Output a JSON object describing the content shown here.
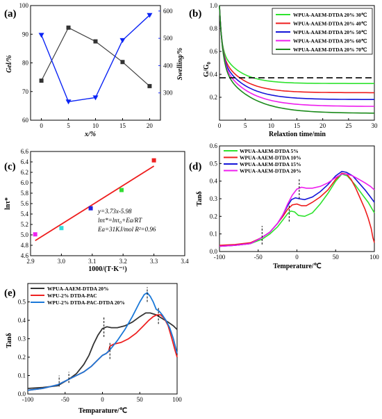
{
  "chart_data": [
    {
      "panel_label": "(a)",
      "type": "line",
      "xlabel": "x/%",
      "ylabel": "Gel/%",
      "y2label": "Swelling/%",
      "xlim": [
        -2,
        22
      ],
      "ylim": [
        60,
        100
      ],
      "y2lim": [
        200,
        620
      ],
      "x_ticks": [
        "0",
        "5",
        "10",
        "15",
        "20"
      ],
      "y_ticks": [
        "60",
        "70",
        "80",
        "90",
        "100"
      ],
      "y2_ticks": [
        "300",
        "400",
        "500",
        "600"
      ],
      "grid": false,
      "series": [
        {
          "name": "",
          "axis": "left",
          "color": "#404040",
          "marker": "square",
          "x": [
            0,
            5,
            10,
            15,
            20
          ],
          "y": [
            73.8,
            92.3,
            87.5,
            80.3,
            71.9
          ]
        },
        {
          "name": "",
          "axis": "right",
          "color": "#0b24f5",
          "marker": "triangle-down",
          "x": [
            0,
            5,
            10,
            15,
            20
          ],
          "y": [
            512,
            268,
            283,
            493,
            585
          ]
        }
      ]
    },
    {
      "panel_label": "(b)",
      "type": "line",
      "xlabel": "Relaxtion time/min",
      "ylabel": "G/G",
      "ylabel_sub": "0",
      "xlim": [
        0,
        30
      ],
      "ylim": [
        0,
        1.0
      ],
      "x_ticks": [
        "0",
        "5",
        "10",
        "15",
        "20",
        "25",
        "30"
      ],
      "y_ticks": [
        "0.2",
        "0.4",
        "0.6",
        "0.8",
        "1.0"
      ],
      "reference_line": {
        "y": 0.37,
        "style": "dashed"
      },
      "legend_position": "top-right",
      "grid": false,
      "series": [
        {
          "name": "WPUA-AAEM-DTDA 20% 30℃",
          "color": "#2ee32e",
          "tau": 0.4,
          "plateau": 0.32
        },
        {
          "name": "WPUA-AAEM-DTDA 20% 40℃",
          "color": "#ee1c1c",
          "tau": 0.45,
          "plateau": 0.24
        },
        {
          "name": "WPUA-AAEM-DTDA 20% 50℃",
          "color": "#1414d8",
          "tau": 0.5,
          "plateau": 0.18
        },
        {
          "name": "WPUA-AAEM-DTDA 20% 60℃",
          "color": "#ee1cee",
          "tau": 0.55,
          "plateau": 0.12
        },
        {
          "name": "WPUA-AAEM-DTDA 20% 70℃",
          "color": "#1a8a1a",
          "tau": 0.6,
          "plateau": 0.06
        }
      ]
    },
    {
      "panel_label": "(c)",
      "type": "scatter",
      "xlabel": "1000/(T·K⁻¹)",
      "ylabel": "lnτ*",
      "xlim": [
        2.9,
        3.4
      ],
      "ylim": [
        4.6,
        6.6
      ],
      "x_ticks": [
        "2.9",
        "3.0",
        "3.1",
        "3.2",
        "3.3",
        "3.4"
      ],
      "y_ticks": [
        "4.6",
        "4.8",
        "5.0",
        "5.2",
        "5.4",
        "5.6",
        "5.8",
        "6.0",
        "6.2",
        "6.4",
        "6.6"
      ],
      "points": [
        {
          "x": 2.915,
          "y": 5.01,
          "color": "#ee22ee"
        },
        {
          "x": 3.0,
          "y": 5.13,
          "color": "#33dddd"
        },
        {
          "x": 3.095,
          "y": 5.51,
          "color": "#2222dd"
        },
        {
          "x": 3.195,
          "y": 5.86,
          "color": "#33dd33"
        },
        {
          "x": 3.3,
          "y": 6.43,
          "color": "#ee2222"
        }
      ],
      "fit_line": {
        "x": [
          2.915,
          3.3
        ],
        "y": [
          4.89,
          6.32
        ],
        "color": "#ee1c1c"
      },
      "annotations": [
        "y=3.73x-5.98",
        "lnτ*=lnτ₀+Ea/RT",
        "Ea=31KJ/mol  R²=0.96"
      ],
      "grid": false
    },
    {
      "panel_label": "(d)",
      "type": "line",
      "xlabel": "Temperature/℃",
      "ylabel": "Tanδ",
      "xlim": [
        -100,
        100
      ],
      "ylim": [
        0,
        0.6
      ],
      "x_ticks": [
        "-100",
        "-50",
        "0",
        "50",
        "100"
      ],
      "y_ticks": [
        "0.0",
        "0.1",
        "0.2",
        "0.3",
        "0.4",
        "0.5",
        "0.6"
      ],
      "legend_position": "top-left",
      "marker_lines_x": [
        -45,
        -10,
        3
      ],
      "grid": false,
      "series": [
        {
          "name": "WPUA-AAEM-DTDA 5%",
          "color": "#2ee32e",
          "x": [
            -100,
            -80,
            -60,
            -45,
            -35,
            -25,
            -18,
            -12,
            -8,
            -3,
            2,
            10,
            20,
            30,
            40,
            50,
            58,
            65,
            75,
            85,
            92,
            100
          ],
          "y": [
            0.03,
            0.035,
            0.045,
            0.07,
            0.1,
            0.14,
            0.18,
            0.215,
            0.23,
            0.225,
            0.205,
            0.2,
            0.22,
            0.27,
            0.33,
            0.4,
            0.44,
            0.43,
            0.38,
            0.32,
            0.28,
            0.22
          ]
        },
        {
          "name": "WPUA-AAEM-DTDA 10%",
          "color": "#ee1c1c",
          "x": [
            -100,
            -80,
            -60,
            -45,
            -35,
            -25,
            -18,
            -12,
            -6,
            0,
            6,
            12,
            20,
            30,
            40,
            50,
            58,
            64,
            70,
            76,
            82,
            88,
            92,
            96,
            98,
            100
          ],
          "y": [
            0.035,
            0.04,
            0.05,
            0.08,
            0.11,
            0.16,
            0.2,
            0.24,
            0.265,
            0.27,
            0.26,
            0.26,
            0.28,
            0.31,
            0.35,
            0.41,
            0.445,
            0.44,
            0.41,
            0.36,
            0.3,
            0.24,
            0.19,
            0.13,
            0.08,
            0.05
          ]
        },
        {
          "name": "WPUA-AAEM-DTDA 15%",
          "color": "#1414d8",
          "x": [
            -100,
            -80,
            -60,
            -45,
            -35,
            -25,
            -18,
            -12,
            -7,
            -2,
            3,
            10,
            20,
            30,
            40,
            50,
            58,
            64,
            72,
            80,
            88,
            95,
            100
          ],
          "y": [
            0.03,
            0.035,
            0.045,
            0.08,
            0.11,
            0.16,
            0.21,
            0.26,
            0.295,
            0.305,
            0.3,
            0.295,
            0.31,
            0.34,
            0.38,
            0.43,
            0.455,
            0.45,
            0.43,
            0.39,
            0.35,
            0.31,
            0.28
          ]
        },
        {
          "name": "WPUA-AAEM-DTDA 20%",
          "color": "#ee1cee",
          "x": [
            -100,
            -80,
            -60,
            -45,
            -35,
            -25,
            -18,
            -12,
            -6,
            0,
            6,
            12,
            20,
            30,
            40,
            50,
            58,
            64,
            72,
            80,
            88,
            95,
            100
          ],
          "y": [
            0.03,
            0.035,
            0.045,
            0.08,
            0.11,
            0.16,
            0.21,
            0.27,
            0.32,
            0.355,
            0.365,
            0.36,
            0.36,
            0.37,
            0.39,
            0.42,
            0.44,
            0.44,
            0.43,
            0.41,
            0.39,
            0.37,
            0.35
          ]
        }
      ]
    },
    {
      "panel_label": "(e)",
      "type": "line",
      "xlabel": "Temparature/℃",
      "ylabel": "Tanδ",
      "xlim": [
        -100,
        100
      ],
      "ylim": [
        0,
        0.6
      ],
      "x_ticks": [
        "-100",
        "-50",
        "0",
        "50",
        "100"
      ],
      "y_ticks": [
        "0.0",
        "0.1",
        "0.2",
        "0.3",
        "0.4",
        "0.5"
      ],
      "legend_position": "top-left",
      "marker_lines_x": [
        -58,
        -45,
        2,
        10,
        60,
        75
      ],
      "grid": false,
      "series": [
        {
          "name": "WPUA-AAEM-DTDA 20%",
          "color": "#333333",
          "x": [
            -100,
            -80,
            -60,
            -45,
            -35,
            -25,
            -18,
            -12,
            -6,
            0,
            6,
            12,
            20,
            30,
            40,
            50,
            58,
            64,
            72,
            80,
            88,
            95,
            100
          ],
          "y": [
            0.03,
            0.035,
            0.045,
            0.08,
            0.11,
            0.16,
            0.21,
            0.27,
            0.32,
            0.355,
            0.365,
            0.36,
            0.36,
            0.37,
            0.39,
            0.42,
            0.44,
            0.44,
            0.43,
            0.41,
            0.39,
            0.37,
            0.35
          ]
        },
        {
          "name": "WPU-2% DTDA-PAC",
          "color": "#ee2020",
          "x": [
            -100,
            -80,
            -60,
            -45,
            -35,
            -25,
            -15,
            -5,
            0,
            5,
            8,
            10,
            15,
            25,
            35,
            45,
            55,
            62,
            68,
            73,
            78,
            83,
            88,
            93,
            97,
            100
          ],
          "y": [
            0.02,
            0.03,
            0.05,
            0.08,
            0.1,
            0.12,
            0.15,
            0.19,
            0.21,
            0.22,
            0.23,
            0.26,
            0.27,
            0.28,
            0.3,
            0.33,
            0.37,
            0.4,
            0.42,
            0.43,
            0.43,
            0.41,
            0.37,
            0.3,
            0.24,
            0.2
          ]
        },
        {
          "name": "WPU-2% DTDA-PAC-DTDA 20%",
          "color": "#1a78d8",
          "x": [
            -100,
            -80,
            -60,
            -45,
            -35,
            -25,
            -15,
            -5,
            0,
            5,
            10,
            20,
            30,
            40,
            50,
            56,
            60,
            64,
            68,
            72,
            76,
            80,
            85,
            90,
            95,
            100
          ],
          "y": [
            0.02,
            0.03,
            0.05,
            0.08,
            0.1,
            0.12,
            0.15,
            0.19,
            0.21,
            0.22,
            0.24,
            0.29,
            0.35,
            0.42,
            0.5,
            0.54,
            0.55,
            0.53,
            0.5,
            0.46,
            0.45,
            0.43,
            0.4,
            0.36,
            0.3,
            0.22
          ]
        }
      ]
    }
  ]
}
